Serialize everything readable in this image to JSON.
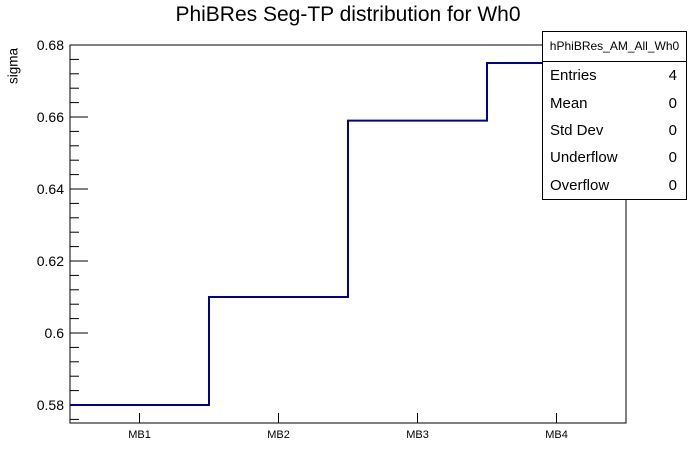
{
  "title": "PhiBRes Seg-TP distribution for Wh0",
  "chart_data": {
    "type": "step-histogram",
    "title": "PhiBRes Seg-TP distribution for Wh0",
    "xlabel": "",
    "ylabel": "sigma",
    "categories": [
      "MB1",
      "MB2",
      "MB3",
      "MB4"
    ],
    "values": [
      0.58,
      0.61,
      0.659,
      0.675
    ],
    "ylim": [
      0.575,
      0.68
    ],
    "yticks": [
      0.58,
      0.6,
      0.62,
      0.64,
      0.66,
      0.68
    ],
    "ytick_labels": [
      "0.58",
      "0.6",
      "0.62",
      "0.64",
      "0.66",
      "0.68"
    ],
    "y_minor_step": 0.004,
    "grid": false,
    "legend_position": "none",
    "line_color": "#000099",
    "axis_color": "#000000",
    "background_color": "#ffffff"
  },
  "stats_box": {
    "header": "hPhiBRes_AM_All_Wh0",
    "rows": [
      {
        "label": "Entries",
        "value": "4"
      },
      {
        "label": "Mean",
        "value": "0"
      },
      {
        "label": "Std Dev",
        "value": "0"
      },
      {
        "label": "Underflow",
        "value": "0"
      },
      {
        "label": "Overflow",
        "value": "0"
      }
    ]
  }
}
